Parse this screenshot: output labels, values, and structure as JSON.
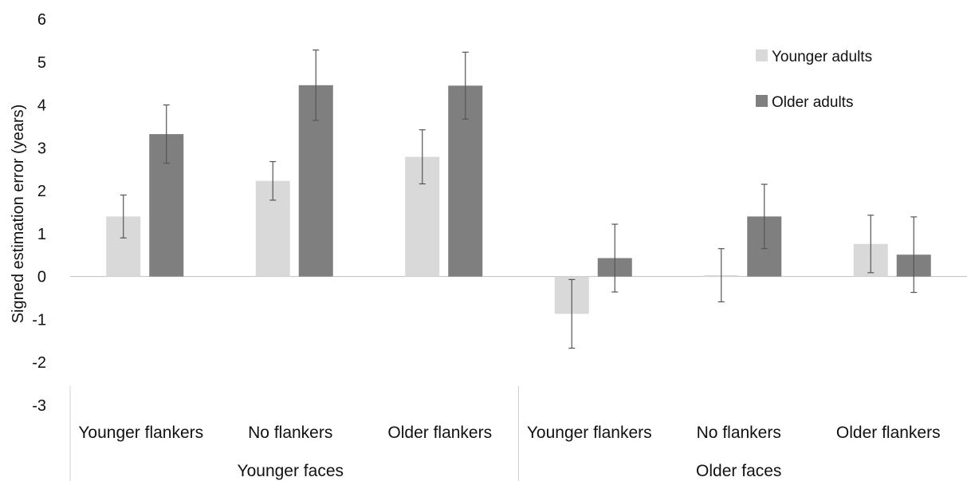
{
  "chart_data": {
    "type": "bar",
    "title": "",
    "xlabel": "",
    "ylabel": "Signed estimation error (years)",
    "ylim": [
      -3,
      6
    ],
    "yticks": [
      6,
      5,
      4,
      3,
      2,
      1,
      0,
      -1,
      -2,
      -3
    ],
    "grid": false,
    "legend_position": "top-right",
    "groups": [
      {
        "label": "Younger faces",
        "categories": [
          "Younger flankers",
          "No flankers",
          "Older flankers"
        ]
      },
      {
        "label": "Older faces",
        "categories": [
          "Younger flankers",
          "No flankers",
          "Older flankers"
        ]
      }
    ],
    "categories": [
      "Younger flankers",
      "No flankers",
      "Older flankers",
      "Younger flankers",
      "No flankers",
      "Older flankers"
    ],
    "series": [
      {
        "name": "Younger adults",
        "color": "#d9d9d9",
        "values": [
          1.4,
          2.23,
          2.79,
          -0.87,
          0.03,
          0.76
        ],
        "error": [
          0.5,
          0.45,
          0.63,
          0.8,
          0.62,
          0.67
        ]
      },
      {
        "name": "Older adults",
        "color": "#7f7f7f",
        "values": [
          3.32,
          4.46,
          4.45,
          0.43,
          1.4,
          0.51
        ],
        "error": [
          0.68,
          0.82,
          0.78,
          0.79,
          0.75,
          0.88
        ]
      }
    ]
  }
}
